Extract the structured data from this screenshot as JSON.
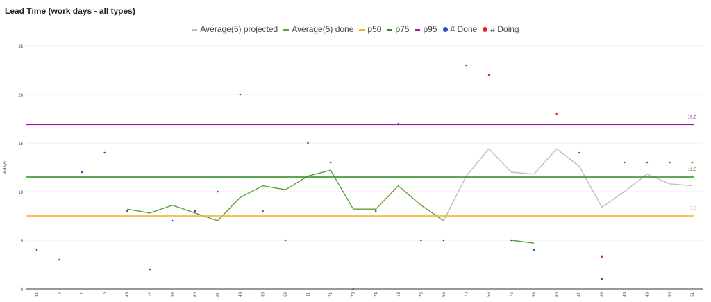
{
  "chart_data": {
    "type": "line",
    "title": "Lead Time (work days - all types)",
    "ylabel": "# days",
    "xlabel": "",
    "ylim": [
      0,
      25
    ],
    "yticks": [
      0,
      5,
      10,
      15,
      20,
      25
    ],
    "grid": true,
    "legend_position": "top",
    "categories": [
      "31",
      "5",
      "7",
      "6",
      "45",
      "12",
      "59",
      "60",
      "61",
      "43",
      "55",
      "69",
      "11",
      "71",
      "73",
      "74",
      "13",
      "75",
      "66",
      "70",
      "56",
      "72",
      "58",
      "85",
      "47",
      "86",
      "48",
      "49",
      "50",
      "51"
    ],
    "legend": [
      {
        "key": "avg_projected",
        "label": "Average(5) projected",
        "color": "#bdbdbd",
        "marker": "line"
      },
      {
        "key": "avg_done",
        "label": "Average(5) done",
        "color": "#5b9f3a",
        "marker": "line"
      },
      {
        "key": "p50",
        "label": "p50",
        "color": "#f2b12b",
        "marker": "line"
      },
      {
        "key": "p75",
        "label": "p75",
        "color": "#2f8a22",
        "marker": "line"
      },
      {
        "key": "p95",
        "label": "p95",
        "color": "#a21aa6",
        "marker": "line"
      },
      {
        "key": "done",
        "label": "# Done",
        "color": "#2a4fc8",
        "marker": "dot"
      },
      {
        "key": "doing",
        "label": "# Doing",
        "color": "#e02626",
        "marker": "dot"
      }
    ],
    "series": [
      {
        "key": "avg_done",
        "segments": [
          [
            [
              4,
              8.2
            ],
            [
              5,
              7.8
            ],
            [
              6,
              8.6
            ],
            [
              7,
              7.8
            ],
            [
              8,
              7.0
            ],
            [
              9,
              9.4
            ],
            [
              10,
              10.6
            ],
            [
              11,
              10.2
            ],
            [
              12,
              11.6
            ],
            [
              13,
              12.2
            ],
            [
              14,
              8.2
            ],
            [
              15,
              8.2
            ],
            [
              16,
              10.6
            ],
            [
              17,
              8.6
            ],
            [
              18,
              7.0
            ]
          ],
          [
            [
              21,
              5.0
            ],
            [
              22,
              4.7
            ]
          ]
        ]
      },
      {
        "key": "avg_projected",
        "segments": [
          [
            [
              18,
              7.0
            ],
            [
              19,
              11.6
            ],
            [
              20,
              14.4
            ],
            [
              21,
              12.0
            ],
            [
              22,
              11.8
            ],
            [
              23,
              14.4
            ],
            [
              24,
              12.6
            ],
            [
              25,
              8.4
            ],
            [
              26,
              10.0
            ],
            [
              27,
              11.8
            ],
            [
              28,
              10.8
            ],
            [
              29,
              10.6
            ]
          ]
        ]
      },
      {
        "key": "p50",
        "value": 7.5,
        "label": "7,5"
      },
      {
        "key": "p75",
        "value": 11.5,
        "label": "11,5"
      },
      {
        "key": "p95",
        "value": 16.9,
        "label": "16,9"
      },
      {
        "key": "done",
        "points": [
          [
            0,
            4
          ],
          [
            1,
            3
          ],
          [
            2,
            12
          ],
          [
            3,
            14
          ],
          [
            4,
            8
          ],
          [
            5,
            2
          ],
          [
            6,
            7
          ],
          [
            7,
            8
          ],
          [
            8,
            10
          ],
          [
            9,
            20
          ],
          [
            10,
            8
          ],
          [
            11,
            5
          ],
          [
            12,
            15
          ],
          [
            13,
            13
          ],
          [
            14,
            0
          ],
          [
            15,
            8
          ],
          [
            16,
            17
          ],
          [
            17,
            5
          ],
          [
            18,
            5
          ],
          [
            21,
            5
          ],
          [
            22,
            4
          ],
          [
            25,
            1
          ]
        ]
      },
      {
        "key": "doing",
        "points": [
          [
            19,
            23
          ],
          [
            20,
            22
          ],
          [
            23,
            18
          ],
          [
            24,
            14
          ],
          [
            25,
            3.3
          ],
          [
            26,
            13
          ],
          [
            27,
            13
          ],
          [
            28,
            13
          ],
          [
            29,
            13
          ]
        ]
      }
    ]
  }
}
